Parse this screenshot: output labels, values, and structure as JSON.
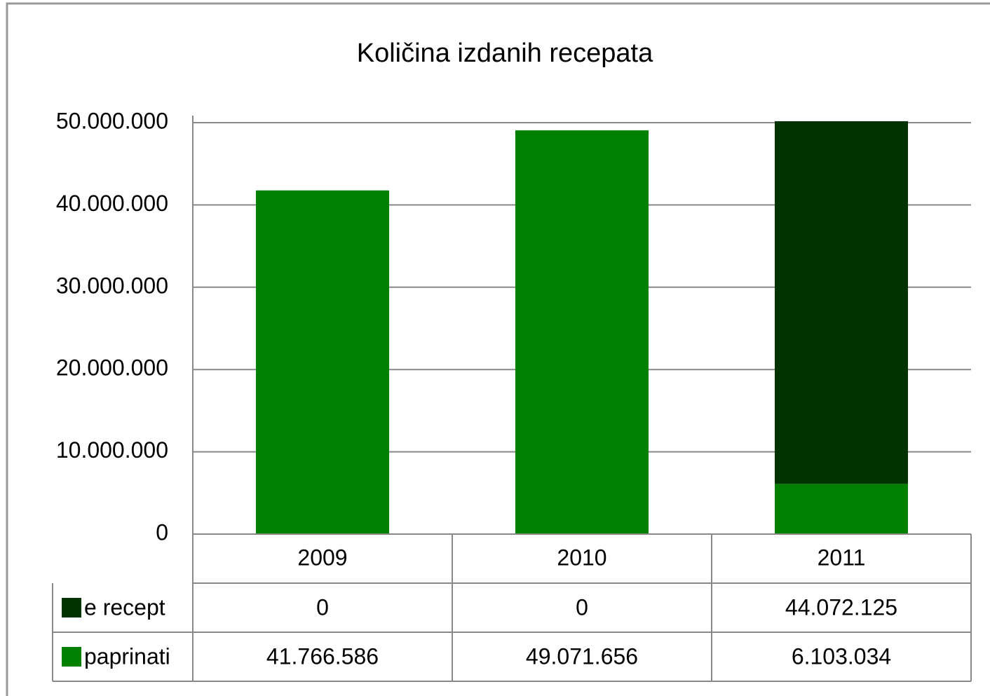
{
  "chart_data": {
    "type": "stacked_bar",
    "title": "Količina izdanih recepata",
    "categories": [
      "2009",
      "2010",
      "2011"
    ],
    "series": [
      {
        "name": "e recept",
        "color": "#003300",
        "values": [
          0,
          0,
          44072125
        ],
        "value_labels": [
          "0",
          "0",
          "44.072.125"
        ]
      },
      {
        "name": "paprinati",
        "color": "#008000",
        "values": [
          41766586,
          49071656,
          6103034
        ],
        "value_labels": [
          "41.766.586",
          "49.071.656",
          "6.103.034"
        ]
      }
    ],
    "ylim": [
      0,
      50000000
    ],
    "yticks": [
      0,
      {
        "value": 10000000,
        "label": "10.000.000"
      },
      {
        "value": 20000000,
        "label": "20.000.000"
      },
      {
        "value": 30000000,
        "label": "30.000.000"
      },
      {
        "value": 40000000,
        "label": "40.000.000"
      },
      {
        "value": 50000000,
        "label": "50.000.000"
      }
    ],
    "grid": true
  }
}
